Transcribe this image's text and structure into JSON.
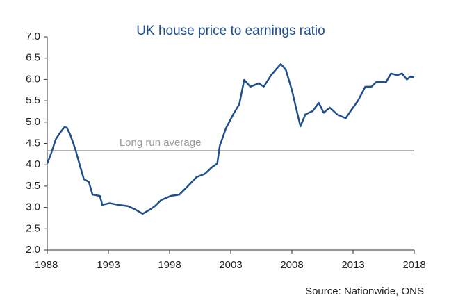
{
  "chart_data": {
    "type": "line",
    "title": "UK house price to earnings ratio",
    "source": "Source: Nationwide, ONS",
    "x": [
      1988.0,
      1988.3,
      1988.7,
      1989.1,
      1989.4,
      1989.6,
      1989.9,
      1990.3,
      1990.7,
      1991.0,
      1991.4,
      1991.7,
      1992.3,
      1992.5,
      1993.1,
      1993.8,
      1994.6,
      1995.2,
      1995.8,
      1996.4,
      1996.8,
      1997.3,
      1998.1,
      1998.8,
      1999.5,
      2000.2,
      2000.9,
      2001.5,
      2001.9,
      2002.1,
      2002.6,
      2003.2,
      2003.7,
      2004.1,
      2004.6,
      2005.3,
      2005.7,
      2006.3,
      2006.8,
      2007.1,
      2007.5,
      2008.0,
      2008.4,
      2008.7,
      2009.1,
      2009.7,
      2010.2,
      2010.6,
      2011.1,
      2011.7,
      2012.4,
      2012.8,
      2013.4,
      2014.0,
      2014.5,
      2014.9,
      2015.7,
      2016.1,
      2016.6,
      2017.0,
      2017.4,
      2017.7,
      2018.0
    ],
    "series": [
      {
        "name": "House price to earnings ratio",
        "color": "#1f4e8c",
        "values": [
          4.03,
          4.25,
          4.6,
          4.77,
          4.88,
          4.87,
          4.69,
          4.36,
          3.95,
          3.66,
          3.6,
          3.3,
          3.27,
          3.06,
          3.1,
          3.06,
          3.03,
          2.95,
          2.85,
          2.95,
          3.03,
          3.17,
          3.27,
          3.3,
          3.5,
          3.71,
          3.79,
          3.95,
          4.03,
          4.44,
          4.85,
          5.18,
          5.42,
          5.99,
          5.83,
          5.91,
          5.83,
          6.1,
          6.27,
          6.36,
          6.23,
          5.75,
          5.26,
          4.9,
          5.18,
          5.26,
          5.45,
          5.22,
          5.34,
          5.18,
          5.09,
          5.26,
          5.5,
          5.83,
          5.83,
          5.94,
          5.94,
          6.14,
          6.1,
          6.14,
          6.0,
          6.07,
          6.05
        ]
      }
    ],
    "reference_line": {
      "value": 4.33,
      "label": "Long run average",
      "color": "#999999"
    },
    "xlim": [
      1988,
      2018
    ],
    "xticks": [
      1988,
      1993,
      1998,
      2003,
      2008,
      2013,
      2018
    ],
    "ylim": [
      2.0,
      7.0
    ],
    "yticks": [
      {
        "value": 2.0,
        "label": "2.0"
      },
      {
        "value": 2.5,
        "label": "2.5"
      },
      {
        "value": 3.0,
        "label": "3.0"
      },
      {
        "value": 3.5,
        "label": "3.5"
      },
      {
        "value": 4.0,
        "label": "4.0"
      },
      {
        "value": 4.5,
        "label": "4.5"
      },
      {
        "value": 5.0,
        "label": "5.0"
      },
      {
        "value": 5.5,
        "label": "5.5"
      },
      {
        "value": 6.0,
        "label": "6.0"
      },
      {
        "value": 6.5,
        "label": "6.5"
      },
      {
        "value": 7.0,
        "label": "7.0"
      }
    ],
    "grid": false
  }
}
